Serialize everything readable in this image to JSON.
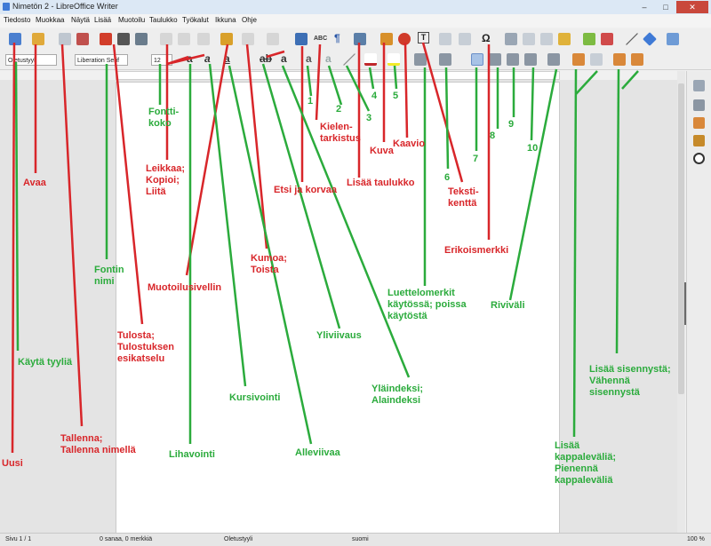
{
  "window": {
    "title": "Nimetön 2 - LibreOffice Writer",
    "minimize": "–",
    "maximize": "□",
    "close": "✕"
  },
  "menu": [
    "Tiedosto",
    "Muokkaa",
    "Näytä",
    "Lisää",
    "Muotoilu",
    "Taulukko",
    "Työkalut",
    "Ikkuna",
    "Ohje"
  ],
  "formatting": {
    "style_value": "Oletustyyli",
    "font_name_value": "Liberation Serif",
    "font_size_value": "12"
  },
  "toolbar_glyphs": {
    "bold": "a",
    "italic": "a",
    "underline": "a",
    "strike": "ab",
    "superscript": "a",
    "shadow": "a",
    "pilcrow": "¶",
    "spell": "ABC",
    "special_char": "Ω",
    "text_box": "T"
  },
  "statusbar": {
    "page": "Sivu 1 / 1",
    "words": "0 sanaa, 0 merkkiä",
    "style": "Oletustyyli",
    "language": "suomi",
    "zoom": "100 %"
  },
  "annotations": {
    "uusi": "Uusi",
    "avaa": "Avaa",
    "tallenna": "Tallenna;\nTallenna nimellä",
    "kayta_tyylia": "Käytä tyyliä",
    "fontin_nimi": "Fontin\nnimi",
    "tulosta": "Tulosta;\nTulostuksen\nesikatselu",
    "leikkaa": "Leikkaa;\nKopioi;\nLiitä",
    "fonttikoko": "Fontti-\nkoko",
    "muotoilusivellin": "Muotoilusivellin",
    "lihavointi": "Lihavointi",
    "kursivointi": "Kursivointi",
    "alleviivaa": "Alleviivaa",
    "kumoa": "Kumoa;\nToista",
    "yliviivaus": "Yliviivaus",
    "etsi": "Etsi ja korvaa",
    "ylaindeksi": "Yläindeksi;\nAlaindeksi",
    "kielentarkistus": "Kielen-\ntarkistus",
    "num1": "1",
    "num2": "2",
    "num3": "3",
    "num4": "4",
    "num5": "5",
    "lisaa_taulukko": "Lisää taulukko",
    "kuva": "Kuva",
    "kaavio": "Kaavio",
    "luettelomerkit": "Luettelomerkit\nkäytössä; poissa\nkäytöstä",
    "num6": "6",
    "tekstikentta": "Teksti-\nkenttä",
    "num7": "7",
    "erikoismerkki": "Erikoismerkki",
    "num8": "8",
    "num9": "9",
    "num10": "10",
    "rivivali": "Riviväli",
    "kappalevali": "Lisää\nkappaleväliä;\nPienennä\nkappaleväliä",
    "sisennys": "Lisää sisennystä;\nVähennä\nsisennystä"
  },
  "colors": {
    "red": "#d8262a",
    "green": "#2bab3c"
  }
}
